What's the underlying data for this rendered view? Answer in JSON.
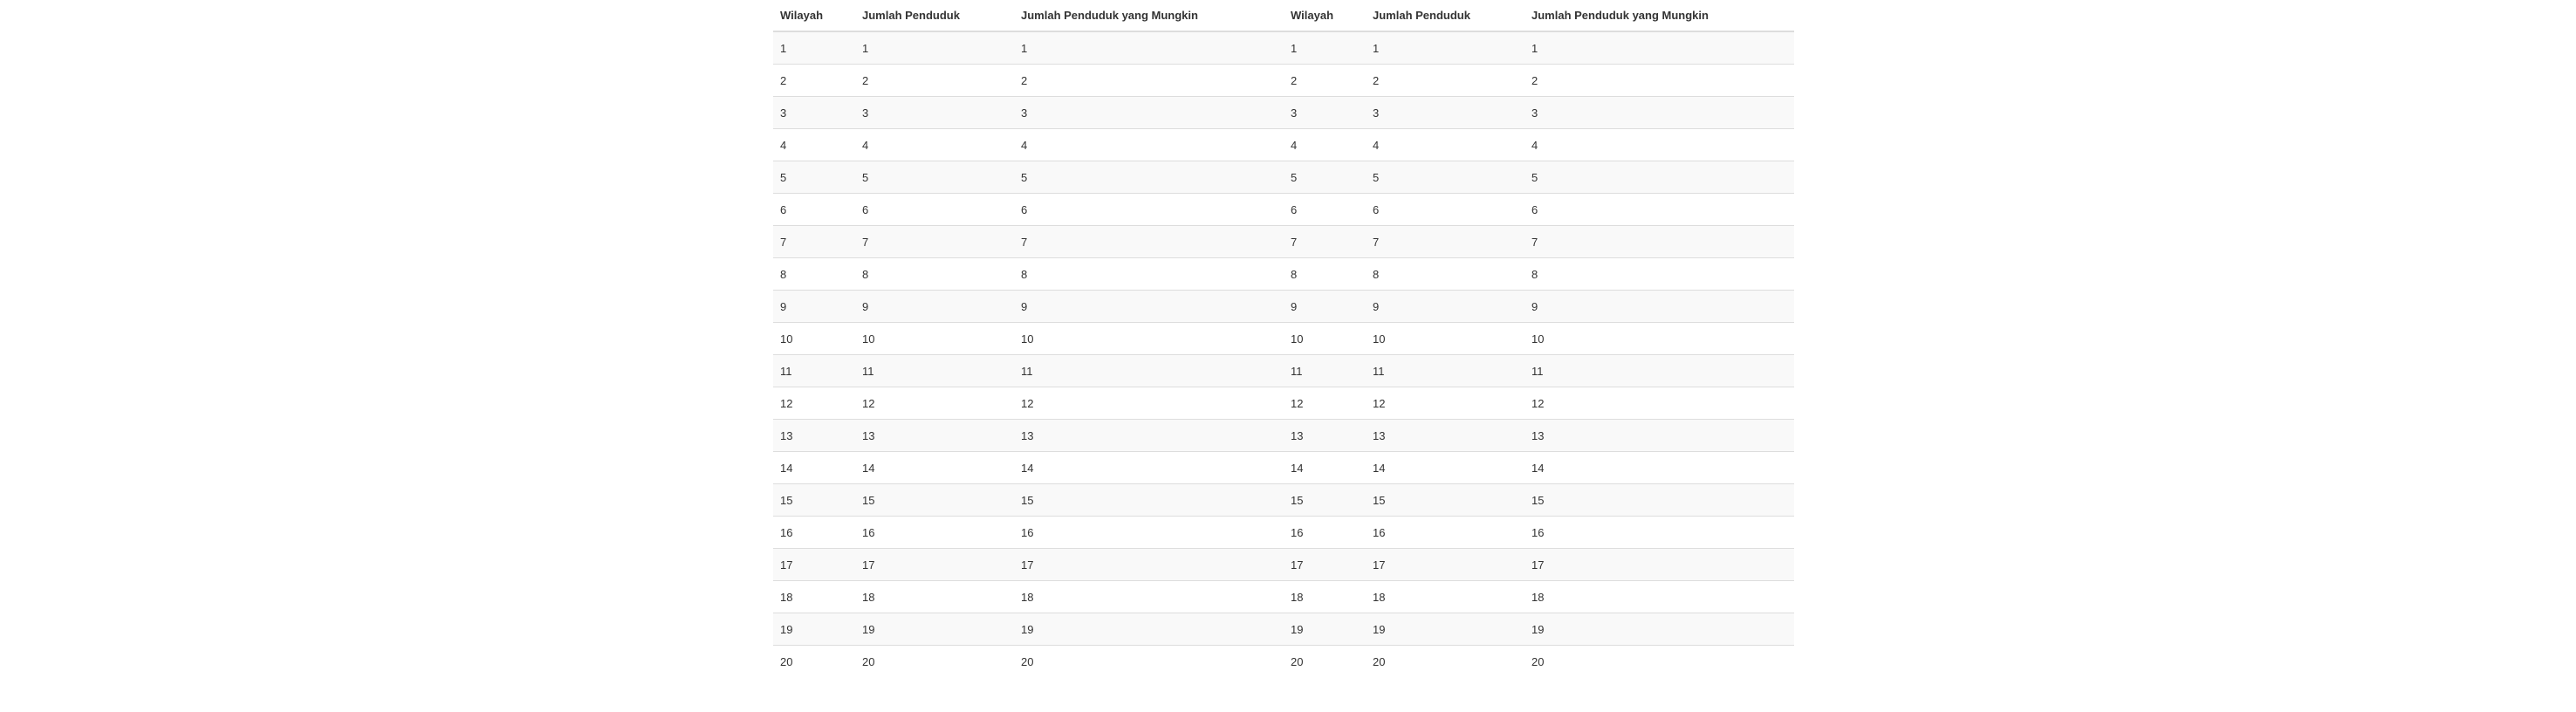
{
  "table": {
    "headers": [
      "Wilayah",
      "Jumlah Penduduk",
      "Jumlah Penduduk yang Mungkin",
      "Wilayah",
      "Jumlah Penduduk",
      "Jumlah Penduduk yang Mungkin"
    ],
    "rows": [
      [
        "1",
        "1",
        "1",
        "1",
        "1",
        "1"
      ],
      [
        "2",
        "2",
        "2",
        "2",
        "2",
        "2"
      ],
      [
        "3",
        "3",
        "3",
        "3",
        "3",
        "3"
      ],
      [
        "4",
        "4",
        "4",
        "4",
        "4",
        "4"
      ],
      [
        "5",
        "5",
        "5",
        "5",
        "5",
        "5"
      ],
      [
        "6",
        "6",
        "6",
        "6",
        "6",
        "6"
      ],
      [
        "7",
        "7",
        "7",
        "7",
        "7",
        "7"
      ],
      [
        "8",
        "8",
        "8",
        "8",
        "8",
        "8"
      ],
      [
        "9",
        "9",
        "9",
        "9",
        "9",
        "9"
      ],
      [
        "10",
        "10",
        "10",
        "10",
        "10",
        "10"
      ],
      [
        "11",
        "11",
        "11",
        "11",
        "11",
        "11"
      ],
      [
        "12",
        "12",
        "12",
        "12",
        "12",
        "12"
      ],
      [
        "13",
        "13",
        "13",
        "13",
        "13",
        "13"
      ],
      [
        "14",
        "14",
        "14",
        "14",
        "14",
        "14"
      ],
      [
        "15",
        "15",
        "15",
        "15",
        "15",
        "15"
      ],
      [
        "16",
        "16",
        "16",
        "16",
        "16",
        "16"
      ],
      [
        "17",
        "17",
        "17",
        "17",
        "17",
        "17"
      ],
      [
        "18",
        "18",
        "18",
        "18",
        "18",
        "18"
      ],
      [
        "19",
        "19",
        "19",
        "19",
        "19",
        "19"
      ],
      [
        "20",
        "20",
        "20",
        "20",
        "20",
        "20"
      ]
    ]
  }
}
